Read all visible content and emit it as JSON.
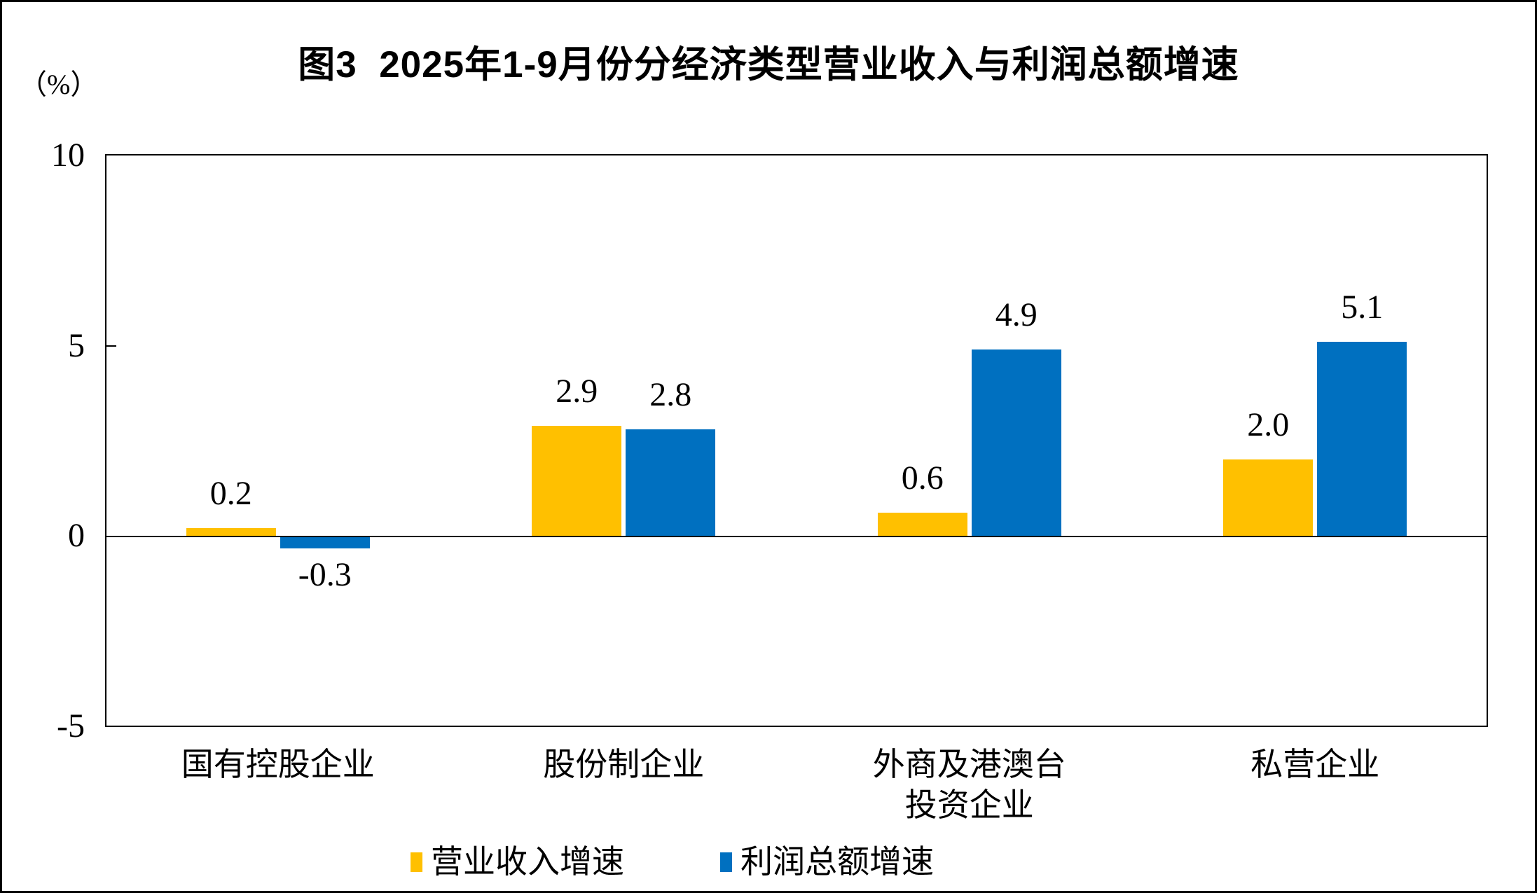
{
  "figure": {
    "title": "图3  2025年1-9月份分经济类型营业收入与利润总额增速",
    "y_axis_unit": "（%）"
  },
  "chart_data": {
    "type": "bar",
    "title": "图3  2025年1-9月份分经济类型营业收入与利润总额增速",
    "ylabel": "（%）",
    "categories": [
      "国有控股企业",
      "股份制企业",
      "外商及港澳台\n投资企业",
      "私营企业"
    ],
    "series": [
      {
        "name": "营业收入增速",
        "color": "#FFC000",
        "values": [
          0.2,
          2.9,
          0.6,
          2.0
        ]
      },
      {
        "name": "利润总额增速",
        "color": "#0070C0",
        "values": [
          -0.3,
          2.8,
          4.9,
          5.1
        ]
      }
    ],
    "ylim": [
      -5,
      10
    ],
    "yticks": [
      10,
      5,
      0,
      -5
    ],
    "grid": false,
    "legend_position": "bottom",
    "data_labels": true
  }
}
